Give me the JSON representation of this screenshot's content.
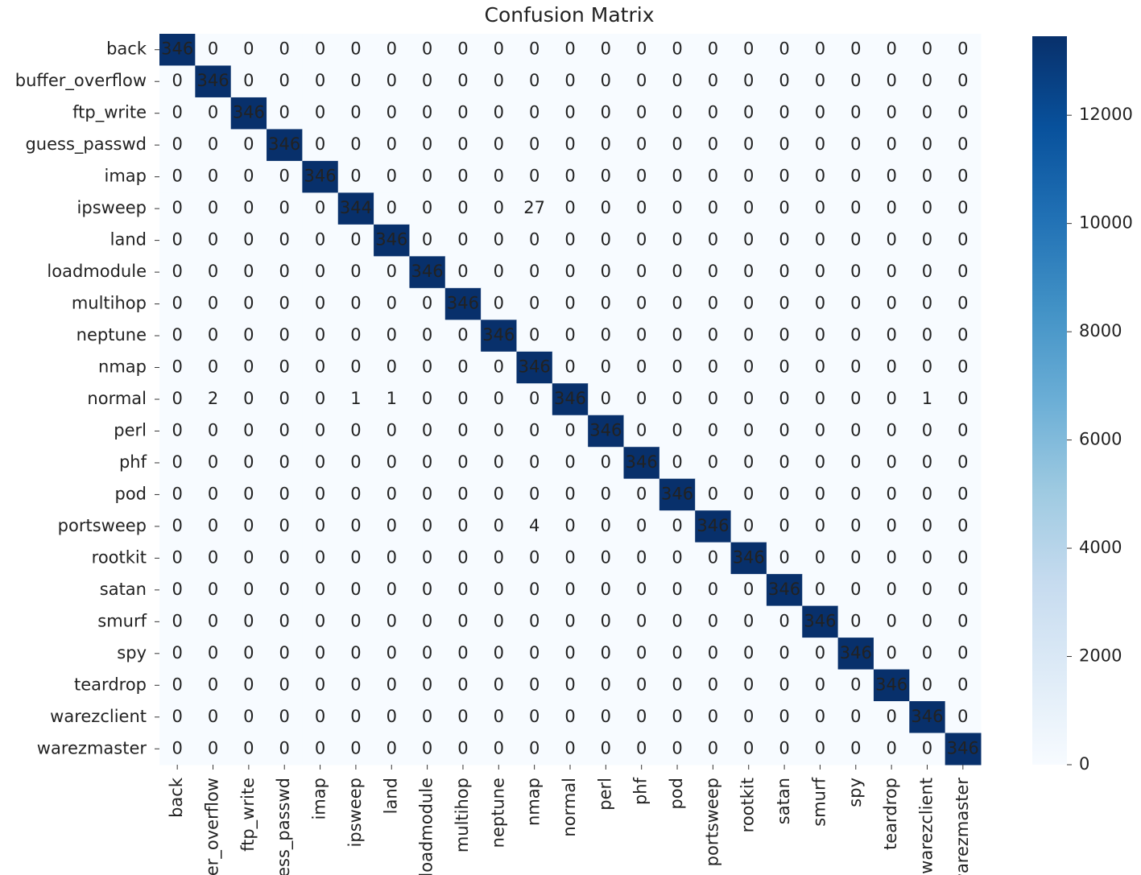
{
  "chart_data": {
    "type": "heatmap",
    "title": "Confusion Matrix",
    "labels": [
      "back",
      "buffer_overflow",
      "ftp_write",
      "guess_passwd",
      "imap",
      "ipsweep",
      "land",
      "loadmodule",
      "multihop",
      "neptune",
      "nmap",
      "normal",
      "perl",
      "phf",
      "pod",
      "portsweep",
      "rootkit",
      "satan",
      "smurf",
      "spy",
      "teardrop",
      "warezclient",
      "warezmaster"
    ],
    "values": [
      [
        346,
        0,
        0,
        0,
        0,
        0,
        0,
        0,
        0,
        0,
        0,
        0,
        0,
        0,
        0,
        0,
        0,
        0,
        0,
        0,
        0,
        0,
        0
      ],
      [
        0,
        346,
        0,
        0,
        0,
        0,
        0,
        0,
        0,
        0,
        0,
        0,
        0,
        0,
        0,
        0,
        0,
        0,
        0,
        0,
        0,
        0,
        0
      ],
      [
        0,
        0,
        346,
        0,
        0,
        0,
        0,
        0,
        0,
        0,
        0,
        0,
        0,
        0,
        0,
        0,
        0,
        0,
        0,
        0,
        0,
        0,
        0
      ],
      [
        0,
        0,
        0,
        346,
        0,
        0,
        0,
        0,
        0,
        0,
        0,
        0,
        0,
        0,
        0,
        0,
        0,
        0,
        0,
        0,
        0,
        0,
        0
      ],
      [
        0,
        0,
        0,
        0,
        346,
        0,
        0,
        0,
        0,
        0,
        0,
        0,
        0,
        0,
        0,
        0,
        0,
        0,
        0,
        0,
        0,
        0,
        0
      ],
      [
        0,
        0,
        0,
        0,
        0,
        344,
        0,
        0,
        0,
        0,
        27,
        0,
        0,
        0,
        0,
        0,
        0,
        0,
        0,
        0,
        0,
        0,
        0
      ],
      [
        0,
        0,
        0,
        0,
        0,
        0,
        346,
        0,
        0,
        0,
        0,
        0,
        0,
        0,
        0,
        0,
        0,
        0,
        0,
        0,
        0,
        0,
        0
      ],
      [
        0,
        0,
        0,
        0,
        0,
        0,
        0,
        346,
        0,
        0,
        0,
        0,
        0,
        0,
        0,
        0,
        0,
        0,
        0,
        0,
        0,
        0,
        0
      ],
      [
        0,
        0,
        0,
        0,
        0,
        0,
        0,
        0,
        346,
        0,
        0,
        0,
        0,
        0,
        0,
        0,
        0,
        0,
        0,
        0,
        0,
        0,
        0
      ],
      [
        0,
        0,
        0,
        0,
        0,
        0,
        0,
        0,
        0,
        346,
        0,
        0,
        0,
        0,
        0,
        0,
        0,
        0,
        0,
        0,
        0,
        0,
        0
      ],
      [
        0,
        0,
        0,
        0,
        0,
        0,
        0,
        0,
        0,
        0,
        346,
        0,
        0,
        0,
        0,
        0,
        0,
        0,
        0,
        0,
        0,
        0,
        0
      ],
      [
        0,
        2,
        0,
        0,
        0,
        1,
        1,
        0,
        0,
        0,
        0,
        346,
        0,
        0,
        0,
        0,
        0,
        0,
        0,
        0,
        0,
        1,
        0
      ],
      [
        0,
        0,
        0,
        0,
        0,
        0,
        0,
        0,
        0,
        0,
        0,
        0,
        346,
        0,
        0,
        0,
        0,
        0,
        0,
        0,
        0,
        0,
        0
      ],
      [
        0,
        0,
        0,
        0,
        0,
        0,
        0,
        0,
        0,
        0,
        0,
        0,
        0,
        346,
        0,
        0,
        0,
        0,
        0,
        0,
        0,
        0,
        0
      ],
      [
        0,
        0,
        0,
        0,
        0,
        0,
        0,
        0,
        0,
        0,
        0,
        0,
        0,
        0,
        346,
        0,
        0,
        0,
        0,
        0,
        0,
        0,
        0
      ],
      [
        0,
        0,
        0,
        0,
        0,
        0,
        0,
        0,
        0,
        0,
        4,
        0,
        0,
        0,
        0,
        346,
        0,
        0,
        0,
        0,
        0,
        0,
        0
      ],
      [
        0,
        0,
        0,
        0,
        0,
        0,
        0,
        0,
        0,
        0,
        0,
        0,
        0,
        0,
        0,
        0,
        346,
        0,
        0,
        0,
        0,
        0,
        0
      ],
      [
        0,
        0,
        0,
        0,
        0,
        0,
        0,
        0,
        0,
        0,
        0,
        0,
        0,
        0,
        0,
        0,
        0,
        346,
        0,
        0,
        0,
        0,
        0
      ],
      [
        0,
        0,
        0,
        0,
        0,
        0,
        0,
        0,
        0,
        0,
        0,
        0,
        0,
        0,
        0,
        0,
        0,
        0,
        346,
        0,
        0,
        0,
        0
      ],
      [
        0,
        0,
        0,
        0,
        0,
        0,
        0,
        0,
        0,
        0,
        0,
        0,
        0,
        0,
        0,
        0,
        0,
        0,
        0,
        346,
        0,
        0,
        0
      ],
      [
        0,
        0,
        0,
        0,
        0,
        0,
        0,
        0,
        0,
        0,
        0,
        0,
        0,
        0,
        0,
        0,
        0,
        0,
        0,
        0,
        346,
        0,
        0
      ],
      [
        0,
        0,
        0,
        0,
        0,
        0,
        0,
        0,
        0,
        0,
        0,
        0,
        0,
        0,
        0,
        0,
        0,
        0,
        0,
        0,
        0,
        346,
        0
      ],
      [
        0,
        0,
        0,
        0,
        0,
        0,
        0,
        0,
        0,
        0,
        0,
        0,
        0,
        0,
        0,
        0,
        0,
        0,
        0,
        0,
        0,
        0,
        346
      ]
    ],
    "diagonal_color": "#08306b",
    "clim": [
      0,
      13460
    ],
    "cticks": [
      0,
      2000,
      4000,
      6000,
      8000,
      10000,
      12000
    ]
  }
}
